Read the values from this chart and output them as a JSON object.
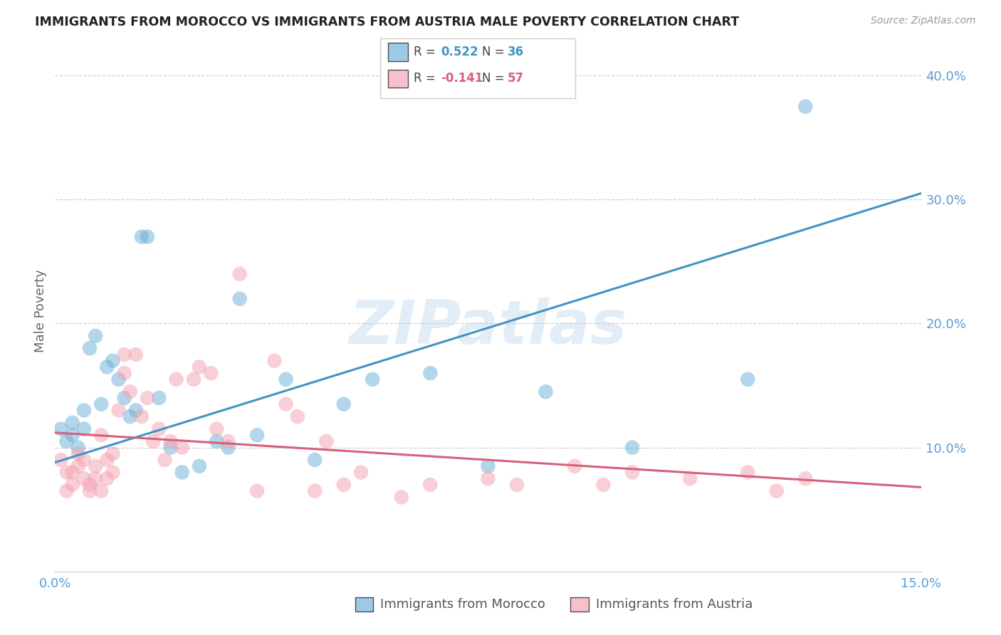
{
  "title": "IMMIGRANTS FROM MOROCCO VS IMMIGRANTS FROM AUSTRIA MALE POVERTY CORRELATION CHART",
  "source": "Source: ZipAtlas.com",
  "ylabel": "Male Poverty",
  "x_min": 0.0,
  "x_max": 0.15,
  "y_min": 0.0,
  "y_max": 0.42,
  "x_ticks": [
    0.0,
    0.05,
    0.1,
    0.15
  ],
  "x_tick_labels": [
    "0.0%",
    "",
    "",
    "15.0%"
  ],
  "y_ticks_right": [
    0.1,
    0.2,
    0.3,
    0.4
  ],
  "y_tick_labels_right": [
    "10.0%",
    "20.0%",
    "30.0%",
    "40.0%"
  ],
  "morocco_R": 0.522,
  "morocco_N": 36,
  "austria_R": -0.141,
  "austria_N": 57,
  "morocco_color": "#6baed6",
  "austria_color": "#f4a0b0",
  "morocco_line_color": "#4393c3",
  "austria_line_color": "#d6617a",
  "watermark": "ZIPatlas",
  "morocco_x": [
    0.001,
    0.002,
    0.003,
    0.004,
    0.005,
    0.005,
    0.006,
    0.007,
    0.008,
    0.009,
    0.01,
    0.011,
    0.012,
    0.013,
    0.014,
    0.015,
    0.016,
    0.018,
    0.02,
    0.022,
    0.025,
    0.028,
    0.03,
    0.032,
    0.035,
    0.04,
    0.045,
    0.05,
    0.055,
    0.065,
    0.075,
    0.085,
    0.1,
    0.12,
    0.13,
    0.003
  ],
  "morocco_y": [
    0.115,
    0.105,
    0.12,
    0.1,
    0.13,
    0.115,
    0.18,
    0.19,
    0.135,
    0.165,
    0.17,
    0.155,
    0.14,
    0.125,
    0.13,
    0.27,
    0.27,
    0.14,
    0.1,
    0.08,
    0.085,
    0.105,
    0.1,
    0.22,
    0.11,
    0.155,
    0.09,
    0.135,
    0.155,
    0.16,
    0.085,
    0.145,
    0.1,
    0.155,
    0.375,
    0.11
  ],
  "austria_x": [
    0.001,
    0.002,
    0.002,
    0.003,
    0.003,
    0.004,
    0.004,
    0.005,
    0.005,
    0.006,
    0.006,
    0.007,
    0.007,
    0.008,
    0.008,
    0.009,
    0.009,
    0.01,
    0.01,
    0.011,
    0.012,
    0.012,
    0.013,
    0.014,
    0.015,
    0.016,
    0.017,
    0.018,
    0.019,
    0.02,
    0.021,
    0.022,
    0.024,
    0.025,
    0.027,
    0.028,
    0.03,
    0.032,
    0.035,
    0.038,
    0.04,
    0.042,
    0.045,
    0.047,
    0.05,
    0.053,
    0.06,
    0.065,
    0.075,
    0.08,
    0.09,
    0.095,
    0.1,
    0.11,
    0.12,
    0.125,
    0.13
  ],
  "austria_y": [
    0.09,
    0.08,
    0.065,
    0.07,
    0.08,
    0.085,
    0.095,
    0.075,
    0.09,
    0.065,
    0.07,
    0.075,
    0.085,
    0.065,
    0.11,
    0.075,
    0.09,
    0.08,
    0.095,
    0.13,
    0.175,
    0.16,
    0.145,
    0.175,
    0.125,
    0.14,
    0.105,
    0.115,
    0.09,
    0.105,
    0.155,
    0.1,
    0.155,
    0.165,
    0.16,
    0.115,
    0.105,
    0.24,
    0.065,
    0.17,
    0.135,
    0.125,
    0.065,
    0.105,
    0.07,
    0.08,
    0.06,
    0.07,
    0.075,
    0.07,
    0.085,
    0.07,
    0.08,
    0.075,
    0.08,
    0.065,
    0.075
  ],
  "morocco_line_x0": 0.0,
  "morocco_line_y0": 0.088,
  "morocco_line_x1": 0.15,
  "morocco_line_y1": 0.305,
  "austria_line_x0": 0.0,
  "austria_line_y0": 0.112,
  "austria_line_x1": 0.15,
  "austria_line_y1": 0.068,
  "background_color": "#ffffff",
  "grid_color": "#d0d0d0",
  "title_color": "#222222",
  "axis_label_color": "#666666",
  "tick_color_right": "#5b9bd5",
  "tick_color_bottom": "#5b9bd5"
}
